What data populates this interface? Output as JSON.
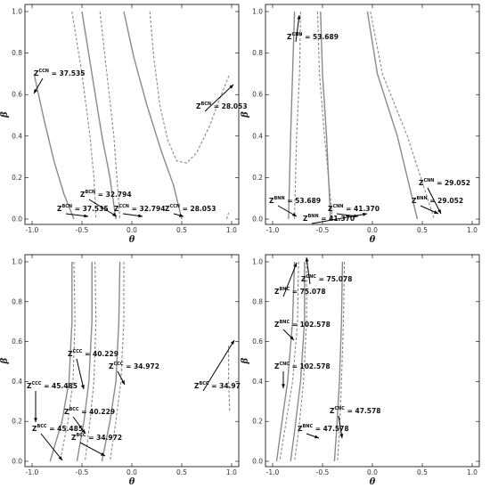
{
  "chart_data": [
    {
      "type": "line",
      "xlabel": "θ",
      "ylabel": "β",
      "xlim": [
        -1.0,
        1.0
      ],
      "ylim": [
        0.0,
        1.0
      ],
      "xticks": [
        "-1.0",
        "-0.5",
        "0.0",
        "0.5",
        "1.0"
      ],
      "yticks": [
        "0.0",
        "0.2",
        "0.4",
        "0.6",
        "0.8",
        "1.0"
      ],
      "series": [
        {
          "style": "solid",
          "points": [
            [
              -0.98,
              0.7
            ],
            [
              -0.88,
              0.48
            ],
            [
              -0.78,
              0.28
            ],
            [
              -0.68,
              0.12
            ],
            [
              -0.58,
              0.0
            ]
          ]
        },
        {
          "style": "dashed",
          "points": [
            [
              -0.6,
              1.0
            ],
            [
              -0.5,
              0.7
            ],
            [
              -0.42,
              0.4
            ],
            [
              -0.38,
              0.2
            ],
            [
              -0.36,
              0.0
            ]
          ]
        },
        {
          "style": "solid",
          "points": [
            [
              -0.5,
              1.0
            ],
            [
              -0.4,
              0.7
            ],
            [
              -0.3,
              0.4
            ],
            [
              -0.22,
              0.2
            ],
            [
              -0.16,
              0.0
            ]
          ]
        },
        {
          "style": "dashed",
          "points": [
            [
              -0.32,
              1.0
            ],
            [
              -0.25,
              0.7
            ],
            [
              -0.18,
              0.4
            ],
            [
              -0.15,
              0.2
            ],
            [
              -0.12,
              0.0
            ]
          ]
        },
        {
          "style": "solid",
          "points": [
            [
              -0.08,
              1.0
            ],
            [
              0.02,
              0.78
            ],
            [
              0.15,
              0.55
            ],
            [
              0.3,
              0.32
            ],
            [
              0.42,
              0.16
            ],
            [
              0.5,
              0.0
            ]
          ]
        },
        {
          "style": "dashed",
          "points": [
            [
              0.18,
              1.0
            ],
            [
              0.22,
              0.78
            ],
            [
              0.28,
              0.55
            ],
            [
              0.36,
              0.38
            ],
            [
              0.45,
              0.28
            ],
            [
              0.55,
              0.27
            ],
            [
              0.65,
              0.32
            ],
            [
              0.78,
              0.45
            ],
            [
              0.88,
              0.58
            ],
            [
              0.98,
              0.7
            ]
          ]
        },
        {
          "style": "dashed",
          "points": [
            [
              0.95,
              0.0
            ],
            [
              0.97,
              0.03
            ]
          ]
        }
      ],
      "annotations": [
        {
          "base": "Z",
          "sup": "CCN",
          "value": "= 37.535",
          "at": [
            -0.98,
            0.72
          ]
        },
        {
          "base": "Z",
          "sup": "BCN",
          "value": "= 37.535",
          "at": [
            -0.8,
            0.1
          ]
        },
        {
          "base": "Z",
          "sup": "BCN",
          "value": "= 32.794",
          "at": [
            -0.55,
            0.05
          ]
        },
        {
          "base": "Z",
          "sup": "CCN",
          "value": "= 32.794",
          "at": [
            -0.25,
            0.1
          ]
        },
        {
          "base": "Z",
          "sup": "CCN",
          "value": "= 28.053",
          "at": [
            0.25,
            0.1
          ]
        },
        {
          "base": "Z",
          "sup": "BCN",
          "value": "= 28.053",
          "at": [
            0.5,
            0.55
          ]
        }
      ]
    },
    {
      "type": "line",
      "xlabel": "θ",
      "ylabel": "β",
      "xlim": [
        -1.0,
        1.0
      ],
      "ylim": [
        0.0,
        1.0
      ],
      "xticks": [
        "-1.0",
        "-0.5",
        "0.0",
        "0.5",
        "1.0"
      ],
      "yticks": [
        "0.0",
        "0.2",
        "0.4",
        "0.6",
        "0.8",
        "1.0"
      ],
      "series": [
        {
          "style": "solid",
          "points": [
            [
              -0.78,
              1.0
            ],
            [
              -0.8,
              0.7
            ],
            [
              -0.82,
              0.4
            ],
            [
              -0.84,
              0.0
            ]
          ]
        },
        {
          "style": "dashed",
          "points": [
            [
              -0.72,
              1.0
            ],
            [
              -0.73,
              0.7
            ],
            [
              -0.76,
              0.4
            ],
            [
              -0.78,
              0.0
            ]
          ]
        },
        {
          "style": "solid",
          "points": [
            [
              -0.52,
              1.0
            ],
            [
              -0.5,
              0.7
            ],
            [
              -0.46,
              0.4
            ],
            [
              -0.42,
              0.0
            ]
          ]
        },
        {
          "style": "dashed",
          "points": [
            [
              -0.55,
              1.0
            ],
            [
              -0.53,
              0.7
            ],
            [
              -0.48,
              0.4
            ],
            [
              -0.4,
              0.0
            ]
          ]
        },
        {
          "style": "solid",
          "points": [
            [
              -0.05,
              1.0
            ],
            [
              0.05,
              0.7
            ],
            [
              0.25,
              0.4
            ],
            [
              0.45,
              0.0
            ]
          ]
        },
        {
          "style": "dashed",
          "points": [
            [
              -0.02,
              1.0
            ],
            [
              0.1,
              0.7
            ],
            [
              0.35,
              0.4
            ],
            [
              0.62,
              0.0
            ]
          ]
        }
      ],
      "annotations": [
        {
          "base": "Z",
          "sup": "CNN",
          "value": "= 53.689",
          "at": [
            -0.65,
            0.88
          ]
        },
        {
          "base": "Z",
          "sup": "BNN",
          "value": "= 53.689",
          "at": [
            -0.95,
            0.18
          ]
        },
        {
          "base": "Z",
          "sup": "CNN",
          "value": "= 41.370",
          "at": [
            -0.45,
            0.22
          ]
        },
        {
          "base": "Z",
          "sup": "BNN",
          "value": "= 41.370",
          "at": [
            -0.65,
            0.1
          ]
        },
        {
          "base": "Z",
          "sup": "CNN",
          "value": "= 29.052",
          "at": [
            0.42,
            0.22
          ]
        },
        {
          "base": "Z",
          "sup": "BNN",
          "value": "= 29.052",
          "at": [
            0.42,
            0.12
          ]
        }
      ]
    },
    {
      "type": "line",
      "xlabel": "θ",
      "ylabel": "β",
      "xlim": [
        -1.0,
        1.0
      ],
      "ylim": [
        0.0,
        1.0
      ],
      "xticks": [
        "-1.0",
        "-0.5",
        "0.0",
        "0.5",
        "1.0"
      ],
      "yticks": [
        "0.0",
        "0.2",
        "0.4",
        "0.6",
        "0.8",
        "1.0"
      ],
      "series": [
        {
          "style": "solid",
          "points": [
            [
              -0.6,
              1.0
            ],
            [
              -0.6,
              0.7
            ],
            [
              -0.63,
              0.4
            ],
            [
              -0.7,
              0.2
            ],
            [
              -0.82,
              0.0
            ]
          ]
        },
        {
          "style": "dashed",
          "points": [
            [
              -0.58,
              1.0
            ],
            [
              -0.57,
              0.7
            ],
            [
              -0.59,
              0.4
            ],
            [
              -0.64,
              0.2
            ],
            [
              -0.72,
              0.0
            ]
          ]
        },
        {
          "style": "solid",
          "points": [
            [
              -0.4,
              1.0
            ],
            [
              -0.4,
              0.7
            ],
            [
              -0.43,
              0.4
            ],
            [
              -0.48,
              0.2
            ],
            [
              -0.55,
              0.0
            ]
          ]
        },
        {
          "style": "dashed",
          "points": [
            [
              -0.37,
              1.0
            ],
            [
              -0.36,
              0.7
            ],
            [
              -0.38,
              0.4
            ],
            [
              -0.42,
              0.2
            ],
            [
              -0.47,
              0.0
            ]
          ]
        },
        {
          "style": "solid",
          "points": [
            [
              -0.12,
              1.0
            ],
            [
              -0.13,
              0.7
            ],
            [
              -0.16,
              0.4
            ],
            [
              -0.22,
              0.2
            ],
            [
              -0.3,
              0.0
            ]
          ]
        },
        {
          "style": "dashed",
          "points": [
            [
              -0.08,
              1.0
            ],
            [
              -0.08,
              0.7
            ],
            [
              -0.11,
              0.4
            ],
            [
              -0.16,
              0.2
            ],
            [
              -0.22,
              0.0
            ]
          ]
        },
        {
          "style": "dashed",
          "points": [
            [
              0.97,
              0.58
            ],
            [
              0.97,
              0.4
            ],
            [
              0.98,
              0.25
            ]
          ]
        }
      ],
      "annotations": [
        {
          "base": "Z",
          "sup": "CCC",
          "value": "= 45.485",
          "at": [
            -1.0,
            0.25
          ]
        },
        {
          "base": "Z",
          "sup": "BCC",
          "value": "= 45.485",
          "at": [
            -0.78,
            0.1
          ]
        },
        {
          "base": "Z",
          "sup": "CCC",
          "value": "= 40.229",
          "at": [
            -0.55,
            0.35
          ]
        },
        {
          "base": "Z",
          "sup": "BCC",
          "value": "= 40.229",
          "at": [
            -0.55,
            0.2
          ]
        },
        {
          "base": "Z",
          "sup": "CCC",
          "value": "= 34.972",
          "at": [
            -0.2,
            0.3
          ]
        },
        {
          "base": "Z",
          "sup": "BCC",
          "value": "= 34.972",
          "at": [
            -0.3,
            0.05
          ]
        },
        {
          "base": "Z",
          "sup": "BCC",
          "value": "= 34.97",
          "at": [
            0.8,
            0.35
          ]
        }
      ]
    },
    {
      "type": "line",
      "xlabel": "θ",
      "ylabel": "β",
      "xlim": [
        -1.0,
        1.0
      ],
      "ylim": [
        0.0,
        1.0
      ],
      "xticks": [
        "-1.0",
        "-0.5",
        "0.0",
        "0.5",
        "1.0"
      ],
      "yticks": [
        "0.0",
        "0.2",
        "0.4",
        "0.6",
        "0.8",
        "1.0"
      ],
      "series": [
        {
          "style": "solid",
          "points": [
            [
              -0.78,
              1.0
            ],
            [
              -0.8,
              0.7
            ],
            [
              -0.85,
              0.4
            ],
            [
              -0.92,
              0.15
            ],
            [
              -0.96,
              0.0
            ]
          ]
        },
        {
          "style": "dashed",
          "points": [
            [
              -0.74,
              1.0
            ],
            [
              -0.75,
              0.7
            ],
            [
              -0.8,
              0.4
            ],
            [
              -0.88,
              0.15
            ],
            [
              -0.93,
              0.0
            ]
          ]
        },
        {
          "style": "solid",
          "points": [
            [
              -0.68,
              1.0
            ],
            [
              -0.68,
              0.7
            ],
            [
              -0.72,
              0.4
            ],
            [
              -0.78,
              0.15
            ],
            [
              -0.82,
              0.0
            ]
          ]
        },
        {
          "style": "dashed",
          "points": [
            [
              -0.66,
              1.0
            ],
            [
              -0.66,
              0.7
            ],
            [
              -0.69,
              0.4
            ],
            [
              -0.74,
              0.15
            ],
            [
              -0.78,
              0.0
            ]
          ]
        },
        {
          "style": "solid",
          "points": [
            [
              -0.3,
              1.0
            ],
            [
              -0.31,
              0.7
            ],
            [
              -0.33,
              0.4
            ],
            [
              -0.36,
              0.15
            ],
            [
              -0.38,
              0.0
            ]
          ]
        },
        {
          "style": "dashed",
          "points": [
            [
              -0.28,
              1.0
            ],
            [
              -0.29,
              0.7
            ],
            [
              -0.31,
              0.4
            ],
            [
              -0.33,
              0.15
            ],
            [
              -0.35,
              0.0
            ]
          ]
        }
      ],
      "annotations": [
        {
          "base": "Z",
          "sup": "CNC",
          "value": "= 75.078",
          "at": [
            -0.75,
            0.92
          ]
        },
        {
          "base": "Z",
          "sup": "BNC",
          "value": "= 75.078",
          "at": [
            -0.95,
            0.82
          ]
        },
        {
          "base": "Z",
          "sup": "BNC",
          "value": "= 102.578",
          "at": [
            -0.95,
            0.68
          ]
        },
        {
          "base": "Z",
          "sup": "CNC",
          "value": "= 102.578",
          "at": [
            -0.95,
            0.5
          ]
        },
        {
          "base": "Z",
          "sup": "CNC",
          "value": "= 47.578",
          "at": [
            -0.42,
            0.2
          ]
        },
        {
          "base": "Z",
          "sup": "BNC",
          "value": "= 47.578",
          "at": [
            -0.7,
            0.1
          ]
        }
      ]
    }
  ]
}
